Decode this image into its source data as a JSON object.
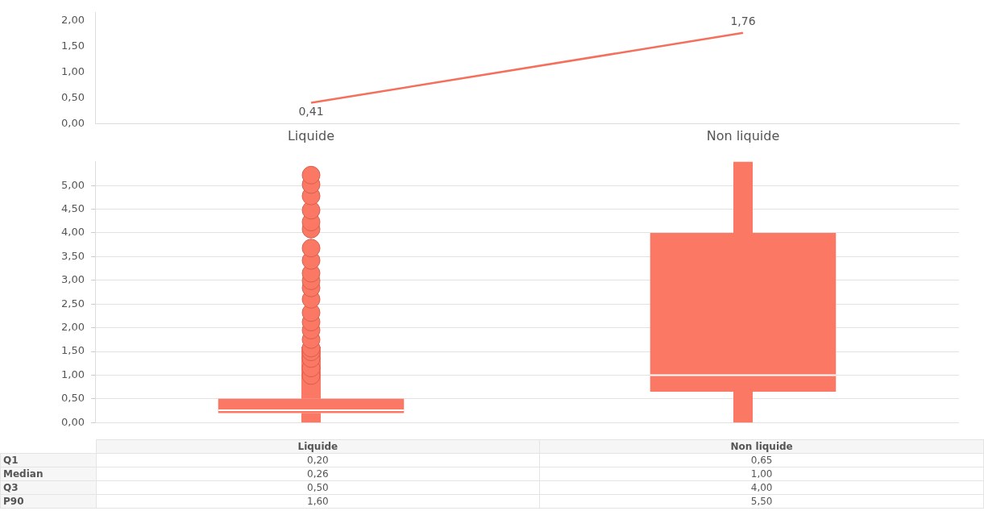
{
  "chart_data": [
    {
      "type": "line",
      "categories": [
        "Liquide",
        "Non liquide"
      ],
      "values": [
        0.41,
        1.76
      ],
      "value_labels": [
        "0,41",
        "1,76"
      ],
      "color": "#f4705c",
      "ylim": [
        0,
        2.15
      ],
      "yticks": [
        {
          "value": 0,
          "label": "0,00"
        },
        {
          "value": 0.5,
          "label": "0,50"
        },
        {
          "value": 1,
          "label": "1,00"
        },
        {
          "value": 1.5,
          "label": "1,50"
        },
        {
          "value": 2,
          "label": "2,00"
        }
      ],
      "grid": false,
      "marker": "none"
    },
    {
      "type": "box",
      "categories": [
        null,
        null
      ],
      "color": "#fa7864",
      "boxes": [
        {
          "low": 0,
          "q1": 0.2,
          "median": 0.26,
          "q3": 0.5,
          "high": 1.6,
          "outliers": [
            0.99,
            1.15,
            1.35,
            1.49,
            1.57,
            1.75,
            1.95,
            2.12,
            2.32,
            2.6,
            2.84,
            2.99,
            3.15,
            3.42,
            3.68,
            4.08,
            4.23,
            4.48,
            4.78,
            5.02,
            5.22
          ]
        },
        {
          "low": 0,
          "q1": 0.65,
          "median": 1,
          "q3": 4,
          "high": 5.5
        }
      ],
      "ylim": [
        0,
        5.5
      ],
      "yticks": [
        {
          "value": 0,
          "label": "0,00"
        },
        {
          "value": 0.5,
          "label": "0,50"
        },
        {
          "value": 1,
          "label": "1,00"
        },
        {
          "value": 1.5,
          "label": "1,50"
        },
        {
          "value": 2,
          "label": "2,00"
        },
        {
          "value": 2.5,
          "label": "2,50"
        },
        {
          "value": 3,
          "label": "3,00"
        },
        {
          "value": 3.5,
          "label": "3,50"
        },
        {
          "value": 4,
          "label": "4,00"
        },
        {
          "value": 4.5,
          "label": "4,50"
        },
        {
          "value": 5,
          "label": "5,00"
        }
      ],
      "grid": "y",
      "tick_labels": "y"
    },
    {
      "type": "other",
      "categories": [
        "Liquide",
        "Non liquide"
      ],
      "y_categories": [
        "Q1",
        "Median",
        "Q3",
        "P90"
      ],
      "cell_labels": [
        [
          "0,20",
          "0,65"
        ],
        [
          "0,26",
          "1,00"
        ],
        [
          "0,50",
          "4,00"
        ],
        [
          "1,60",
          "5,50"
        ]
      ]
    }
  ]
}
